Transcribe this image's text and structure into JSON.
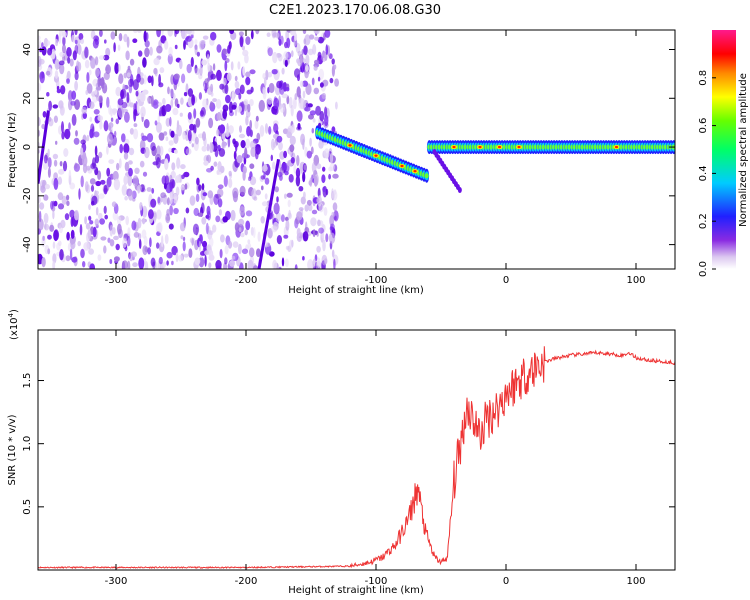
{
  "title": "C2E1.2023.170.06.08.G30",
  "chart_data": [
    {
      "type": "heatmap",
      "xlabel": "Height of straight line (km)",
      "ylabel": "Frequency (Hz)",
      "xlim": [
        -360,
        130
      ],
      "ylim": [
        -50,
        48
      ],
      "xticks": [
        -300,
        -200,
        -100,
        0,
        100
      ],
      "yticks": [
        -40,
        -20,
        0,
        20,
        40
      ],
      "colorbar": {
        "label": "Normalized spectral amplitude",
        "range": [
          0.0,
          1.0
        ],
        "ticks": [
          "0.0",
          "0.2",
          "0.4",
          "0.6",
          "0.8"
        ]
      },
      "features": [
        {
          "x_range": [
            -360,
            -130
          ],
          "freq_range": [
            -50,
            48
          ],
          "amplitude": 0.05
        },
        {
          "x_range": [
            -145,
            -60
          ],
          "freq_start": 6,
          "freq_end": -12,
          "amplitude": 0.55
        },
        {
          "x_range": [
            -60,
            130
          ],
          "freq": 0,
          "amplitude": 0.6
        }
      ]
    },
    {
      "type": "line",
      "xlabel": "Height of straight line (km)",
      "ylabel": "SNR (10 * v/v)",
      "scale_note": "(x10",
      "scale_exp": "4",
      "xlim": [
        -360,
        130
      ],
      "ylim": [
        0,
        1.9
      ],
      "xticks": [
        -300,
        -200,
        -100,
        0,
        100
      ],
      "yticks": [
        "0.5",
        "1.0",
        "1.5"
      ],
      "series": [
        {
          "color": "#ee3333",
          "x": [
            -360,
            -300,
            -200,
            -120,
            -105,
            -95,
            -85,
            -75,
            -68,
            -62,
            -55,
            -50,
            -45,
            -40,
            -35,
            -30,
            -25,
            -20,
            -15,
            -10,
            -5,
            0,
            5,
            10,
            15,
            20,
            25,
            30,
            40,
            50,
            60,
            70,
            80,
            90,
            95,
            100,
            110,
            120,
            130
          ],
          "y": [
            0.02,
            0.02,
            0.02,
            0.03,
            0.06,
            0.1,
            0.2,
            0.4,
            0.65,
            0.3,
            0.1,
            0.06,
            0.1,
            0.7,
            1.0,
            1.3,
            1.2,
            1.05,
            1.2,
            1.25,
            1.3,
            1.4,
            1.45,
            1.5,
            1.55,
            1.58,
            1.62,
            1.65,
            1.68,
            1.7,
            1.71,
            1.72,
            1.71,
            1.7,
            1.72,
            1.68,
            1.66,
            1.65,
            1.64
          ]
        }
      ]
    }
  ]
}
